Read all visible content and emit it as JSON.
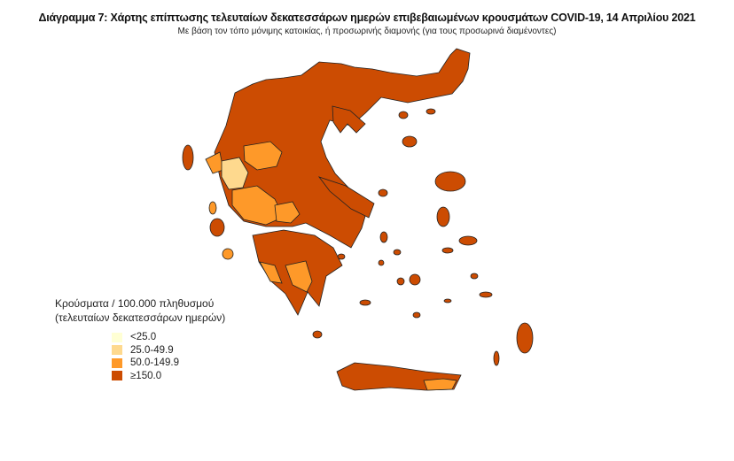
{
  "title": "Διάγραμμα 7: Χάρτης επίπτωσης τελευταίων δεκατεσσάρων ημερών επιβεβαιωμένων κρουσμάτων COVID-19, 14 Απριλίου 2021",
  "subtitle": "Με βάση τον τόπο μόνιμης κατοικίας, ή προσωρινής διαμονής (για τους προσωρινά διαμένοντες)",
  "legend": {
    "title_line1": "Κρούσματα / 100.000 πληθυσμού",
    "title_line2": "(τελευταίων δεκατεσσάρων ημερών)",
    "items": [
      {
        "label": "<25.0",
        "color": "#FFFFD4"
      },
      {
        "label": "25.0-49.9",
        "color": "#FED98E"
      },
      {
        "label": "50.0-149.9",
        "color": "#FE9929"
      },
      {
        "label": "≥150.0",
        "color": "#CC4C02"
      }
    ]
  }
}
